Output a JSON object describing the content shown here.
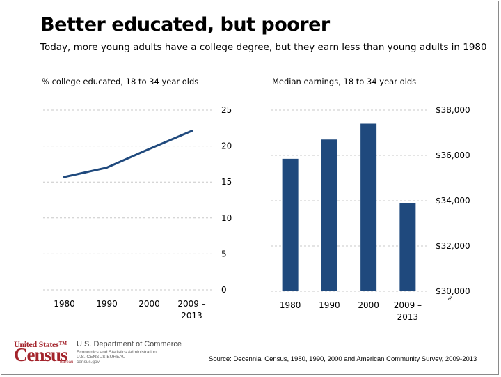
{
  "title": "Better educated, but poorer",
  "subtitle": "Today, more young adults have a college degree, but they earn less than young adults in 1980",
  "source": "Source: Decennial Census, 1980, 1990, 2000 and American Community Survey, 2009-2013",
  "logo": {
    "top_text": "United States™",
    "main_text": "Census",
    "bureau_text": "Bureau",
    "dept_line1": "U.S. Department of Commerce",
    "dept_line2": "Economics and Statistics Administration",
    "dept_line3": "U.S. CENSUS BUREAU",
    "dept_line4": "census.gov"
  },
  "colors": {
    "series": "#1f497d",
    "grid": "#c8c8c8"
  },
  "chart_data": [
    {
      "type": "line",
      "title": "% college educated, 18 to 34 year olds",
      "categories": [
        "1980",
        "1990",
        "2000",
        "2009 – 2013"
      ],
      "values": [
        15.7,
        17,
        19.6,
        22.1
      ],
      "ylim": [
        0,
        25
      ],
      "yticks": [
        0,
        5,
        10,
        15,
        20,
        25
      ],
      "ytick_labels": [
        "0",
        "5",
        "10",
        "15",
        "20",
        "25"
      ],
      "axis_side": "right",
      "grid": true
    },
    {
      "type": "bar",
      "title": "Median earnings, 18 to 34 year olds",
      "categories": [
        "1980",
        "1990",
        "2000",
        "2009 – 2013"
      ],
      "values": [
        35850,
        36700,
        37400,
        33900
      ],
      "ylim": [
        30000,
        38000
      ],
      "yticks": [
        30000,
        32000,
        34000,
        36000,
        38000
      ],
      "ytick_labels": [
        "$30,000",
        "$32,000",
        "$34,000",
        "$36,000",
        "$38,000"
      ],
      "axis_side": "right",
      "axis_break": "≈",
      "grid": true
    }
  ]
}
